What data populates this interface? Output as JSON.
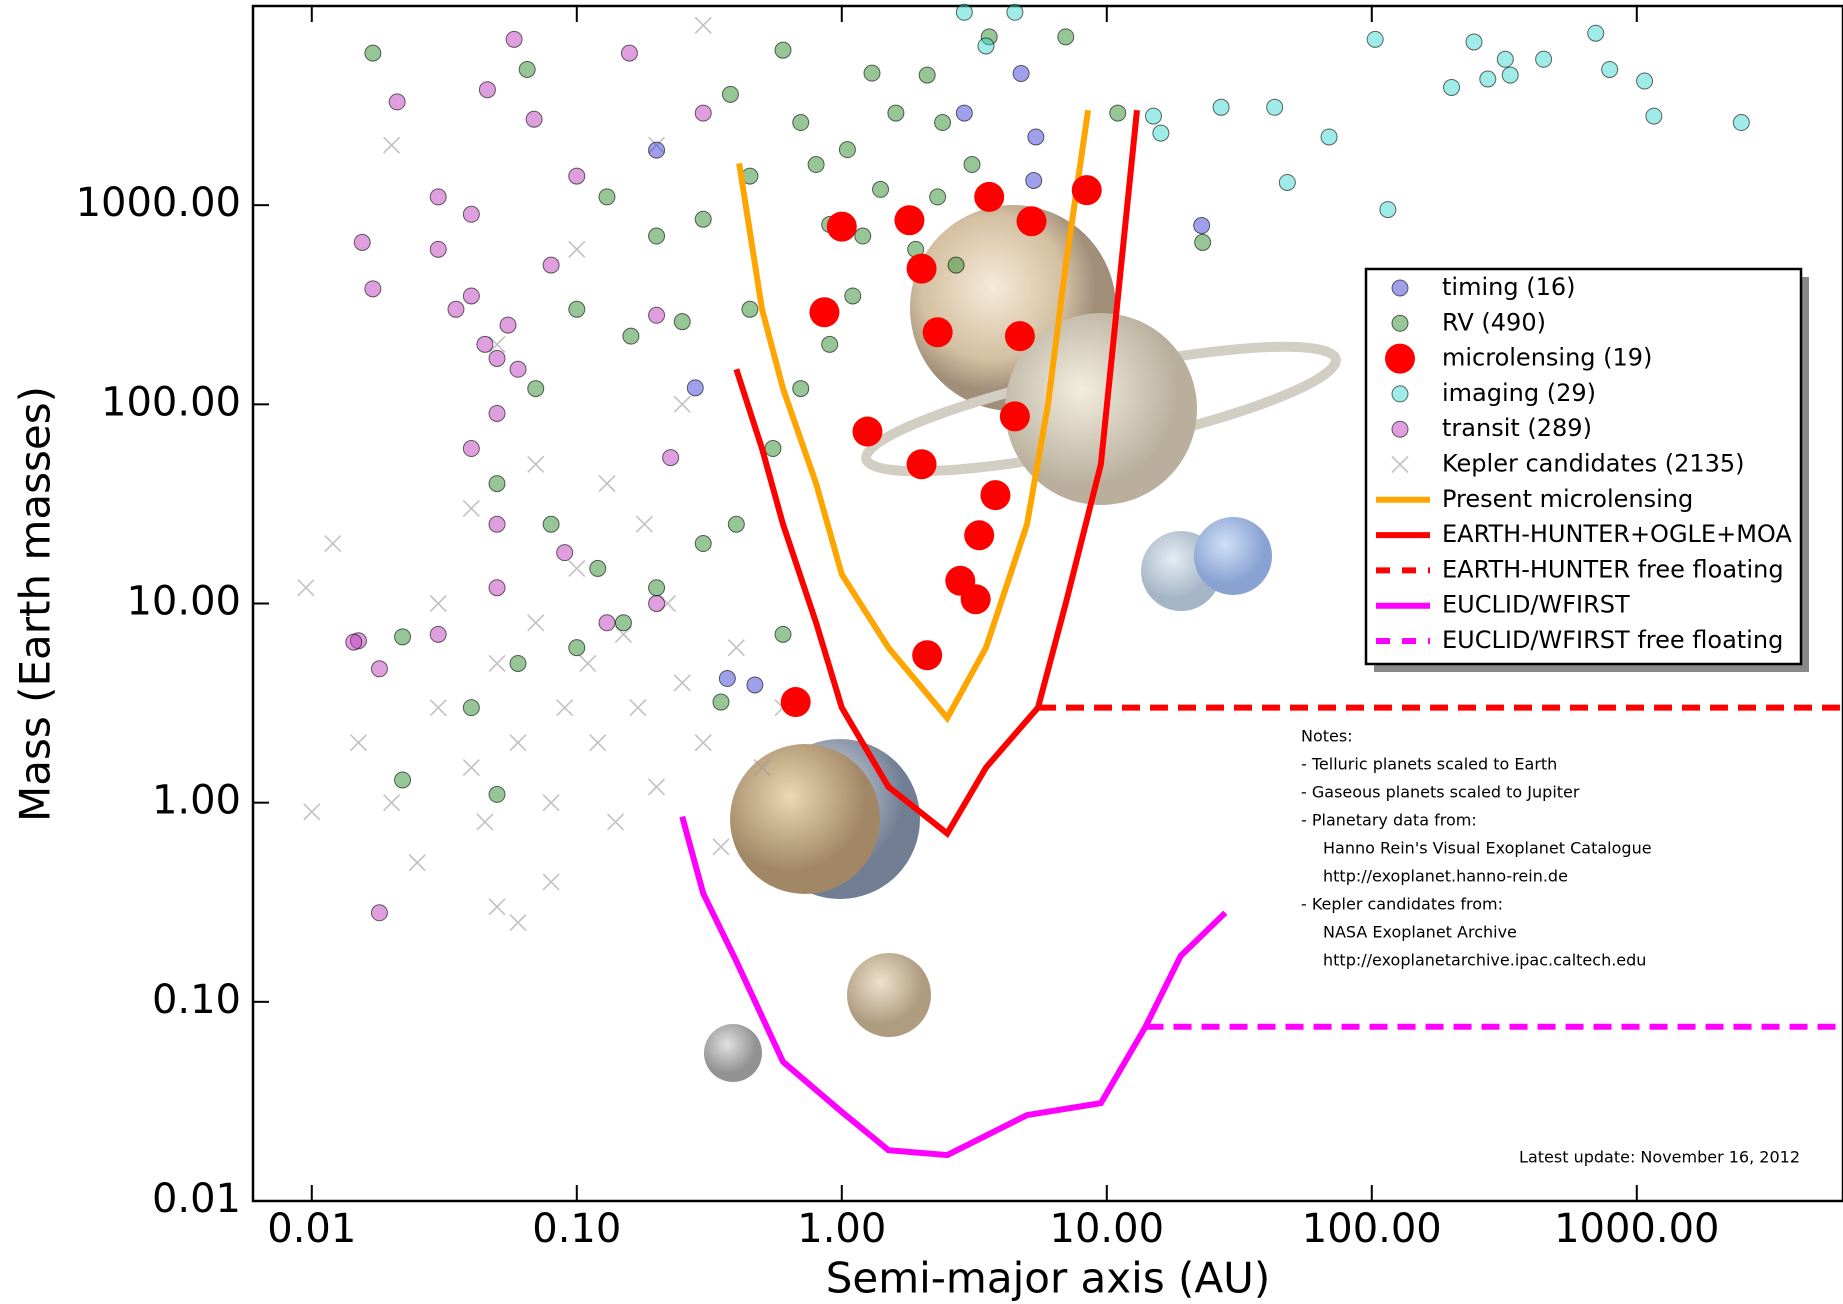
{
  "chart_data": {
    "type": "scatter",
    "xlabel": "Semi-major axis (AU)",
    "ylabel": "Mass (Earth masses)",
    "xscale": "log",
    "yscale": "log",
    "xlim": [
      0.006,
      6000
    ],
    "ylim": [
      0.01,
      10000
    ],
    "xticks": [
      {
        "value": 0.01,
        "label": "0.01"
      },
      {
        "value": 0.1,
        "label": "0.10"
      },
      {
        "value": 1,
        "label": "1.00"
      },
      {
        "value": 10,
        "label": "10.00"
      },
      {
        "value": 100,
        "label": "100.00"
      },
      {
        "value": 1000,
        "label": "1000.00"
      }
    ],
    "yticks": [
      {
        "value": 0.01,
        "label": "0.01"
      },
      {
        "value": 0.1,
        "label": "0.10"
      },
      {
        "value": 1,
        "label": "1.00"
      },
      {
        "value": 10,
        "label": "10.00"
      },
      {
        "value": 100,
        "label": "100.00"
      },
      {
        "value": 1000,
        "label": "1000.00"
      }
    ],
    "legend": "center right",
    "series": [
      {
        "name": "timing (16)",
        "color": "#3f3fd9",
        "marker": "circle",
        "size": 8,
        "x": [
          0.2,
          0.28,
          0.37,
          0.47,
          4.75,
          5.4,
          5.3,
          22.8,
          2.9
        ],
        "values": [
          1890,
          121,
          4.2,
          3.9,
          4580,
          2200,
          1330,
          790,
          2900
        ]
      },
      {
        "name": "RV (490)",
        "color": "#2e8b2e",
        "marker": "circle",
        "size": 8,
        "x": [
          0.017,
          0.065,
          0.13,
          0.2,
          0.3,
          0.38,
          0.45,
          0.6,
          0.7,
          0.8,
          0.9,
          1.05,
          1.2,
          1.4,
          1.6,
          1.9,
          2.1,
          2.3,
          2.7,
          3.1,
          3.6,
          1.1,
          0.9,
          0.7,
          0.55,
          0.45,
          0.25,
          0.16,
          0.1,
          0.07,
          0.05,
          0.08,
          0.12,
          0.15,
          0.2,
          0.3,
          0.1,
          0.06,
          0.04,
          0.05,
          0.022,
          0.022,
          0.35,
          0.6,
          0.4,
          11,
          7,
          23,
          1.3,
          2.4
        ],
        "values": [
          5800,
          4800,
          1100,
          700,
          850,
          3600,
          1400,
          6000,
          2600,
          1600,
          800,
          1900,
          700,
          1200,
          2900,
          600,
          4500,
          1100,
          500,
          1600,
          7000,
          350,
          200,
          120,
          60,
          300,
          260,
          220,
          300,
          120,
          40,
          25,
          15,
          8,
          12,
          20,
          6,
          5,
          3,
          1.1,
          1.3,
          6.8,
          3.2,
          7,
          25,
          2900,
          7000,
          650,
          4600,
          2600
        ]
      },
      {
        "name": "microlensing (19)",
        "color": "#ff0000",
        "marker": "circle",
        "size": 15,
        "x": [
          1.0,
          1.8,
          3.6,
          5.2,
          8.4,
          2.0,
          0.86,
          2.3,
          4.7,
          1.25,
          4.5,
          2.0,
          3.8,
          3.3,
          2.8,
          3.2,
          2.1,
          0.67
        ],
        "values": [
          780,
          840,
          1100,
          830,
          1190,
          480,
          290,
          230,
          220,
          73,
          87,
          50,
          35,
          22,
          13,
          10.5,
          5.5,
          3.2
        ]
      },
      {
        "name": "imaging (29)",
        "color": "#40d8d0",
        "marker": "circle",
        "size": 8,
        "x": [
          103,
          243,
          319,
          445,
          274,
          333,
          700,
          790,
          1070,
          1160,
          2480,
          200,
          69,
          43,
          27,
          48,
          115,
          16,
          15,
          3.5,
          4.5,
          2.9
        ],
        "values": [
          6800,
          6600,
          5400,
          5400,
          4300,
          4500,
          7300,
          4800,
          4200,
          2800,
          2600,
          3900,
          2200,
          3100,
          3100,
          1300,
          950,
          2300,
          2800,
          6300,
          9300,
          9300
        ]
      },
      {
        "name": "transit (289)",
        "color": "#bf40bf",
        "marker": "circle",
        "size": 8,
        "x": [
          0.058,
          0.158,
          0.021,
          0.046,
          0.069,
          0.3,
          0.0155,
          0.017,
          0.03,
          0.04,
          0.045,
          0.05,
          0.055,
          0.06,
          0.035,
          0.04,
          0.08,
          0.1,
          0.03,
          0.2,
          0.226,
          0.05,
          0.04,
          0.05,
          0.05,
          0.03,
          0.015,
          0.018,
          0.018,
          0.0144,
          0.13,
          0.09,
          0.2
        ],
        "values": [
          6800,
          5800,
          3300,
          3800,
          2700,
          2900,
          650,
          380,
          600,
          350,
          200,
          170,
          250,
          150,
          300,
          900,
          500,
          1400,
          1100,
          280,
          54,
          90,
          60,
          25,
          12,
          7,
          6.5,
          4.7,
          0.28,
          6.4,
          8,
          18,
          10
        ]
      },
      {
        "name": "Kepler candidates (2135)",
        "color": "#999999",
        "marker": "x",
        "size": 8,
        "x": [
          0.0095,
          0.01,
          0.012,
          0.015,
          0.02,
          0.025,
          0.03,
          0.04,
          0.05,
          0.05,
          0.06,
          0.07,
          0.08,
          0.09,
          0.1,
          0.11,
          0.12,
          0.14,
          0.15,
          0.17,
          0.2,
          0.22,
          0.25,
          0.3,
          0.35,
          0.4,
          0.5,
          0.6,
          0.07,
          0.05,
          0.1,
          0.2,
          0.02,
          0.3,
          0.04,
          0.03,
          0.06,
          0.13,
          0.18,
          0.25,
          0.08,
          0.045
        ],
        "values": [
          12,
          0.9,
          20,
          2,
          1,
          0.5,
          3,
          1.5,
          0.3,
          5,
          2,
          8,
          1,
          3,
          15,
          5,
          2,
          0.8,
          7,
          3,
          1.2,
          10,
          4,
          2,
          0.6,
          6,
          1.5,
          3,
          50,
          200,
          600,
          2000,
          2000,
          8000,
          30,
          10,
          0.25,
          40,
          25,
          100,
          0.4,
          0.8
        ]
      },
      {
        "name": "Present microlensing",
        "color": "#ffa500",
        "marker": "line",
        "line_style": "solid",
        "x": [
          0.41,
          0.5,
          0.6,
          0.8,
          1.0,
          1.5,
          2.5,
          3.5,
          5.0,
          6.0,
          7.0,
          8.5
        ],
        "values": [
          1620,
          300,
          120,
          40,
          14,
          6,
          2.66,
          6,
          25,
          100,
          500,
          3000
        ]
      },
      {
        "name": "EARTH-HUNTER+OGLE+MOA",
        "color": "#ff0000",
        "marker": "line",
        "line_style": "solid",
        "x": [
          0.4,
          0.5,
          0.6,
          0.8,
          1.0,
          1.5,
          2.5,
          3.5,
          5.5,
          7.0,
          9.5,
          13
        ],
        "values": [
          150,
          60,
          25,
          8,
          3,
          1.2,
          0.7,
          1.5,
          3,
          10,
          50,
          3000
        ]
      },
      {
        "name": "EARTH-HUNTER free floating",
        "color": "#ff0000",
        "marker": "line",
        "line_style": "dashed",
        "x": [
          5.5,
          6000
        ],
        "values": [
          3,
          3
        ]
      },
      {
        "name": "EUCLID/WFIRST",
        "color": "#ff00ff",
        "marker": "line",
        "line_style": "solid",
        "x": [
          0.25,
          0.3,
          0.4,
          0.6,
          1.0,
          1.5,
          2.5,
          5.0,
          9.5,
          14,
          19,
          28
        ],
        "values": [
          0.85,
          0.35,
          0.16,
          0.05,
          0.028,
          0.018,
          0.017,
          0.027,
          0.031,
          0.075,
          0.17,
          0.28
        ]
      },
      {
        "name": "EUCLID/WFIRST free floating",
        "color": "#ff00ff",
        "marker": "line",
        "line_style": "dashed",
        "x": [
          14,
          6000
        ],
        "values": [
          0.075,
          0.075
        ]
      }
    ],
    "notes": {
      "heading": "Notes:",
      "items": [
        {
          "text": "- Telluric planets scaled to Earth",
          "sub": []
        },
        {
          "text": "- Gaseous planets scaled to Jupiter",
          "sub": []
        },
        {
          "text": "- Planetary data from:",
          "sub": [
            "Hanno Rein's Visual Exoplanet Catalogue",
            "http://exoplanet.hanno-rein.de"
          ]
        },
        {
          "text": "- Kepler candidates from:",
          "sub": [
            "NASA Exoplanet Archive",
            "http://exoplanetarchive.ipac.caltech.edu"
          ]
        }
      ]
    },
    "update_note": "Latest update: November 16, 2012"
  }
}
